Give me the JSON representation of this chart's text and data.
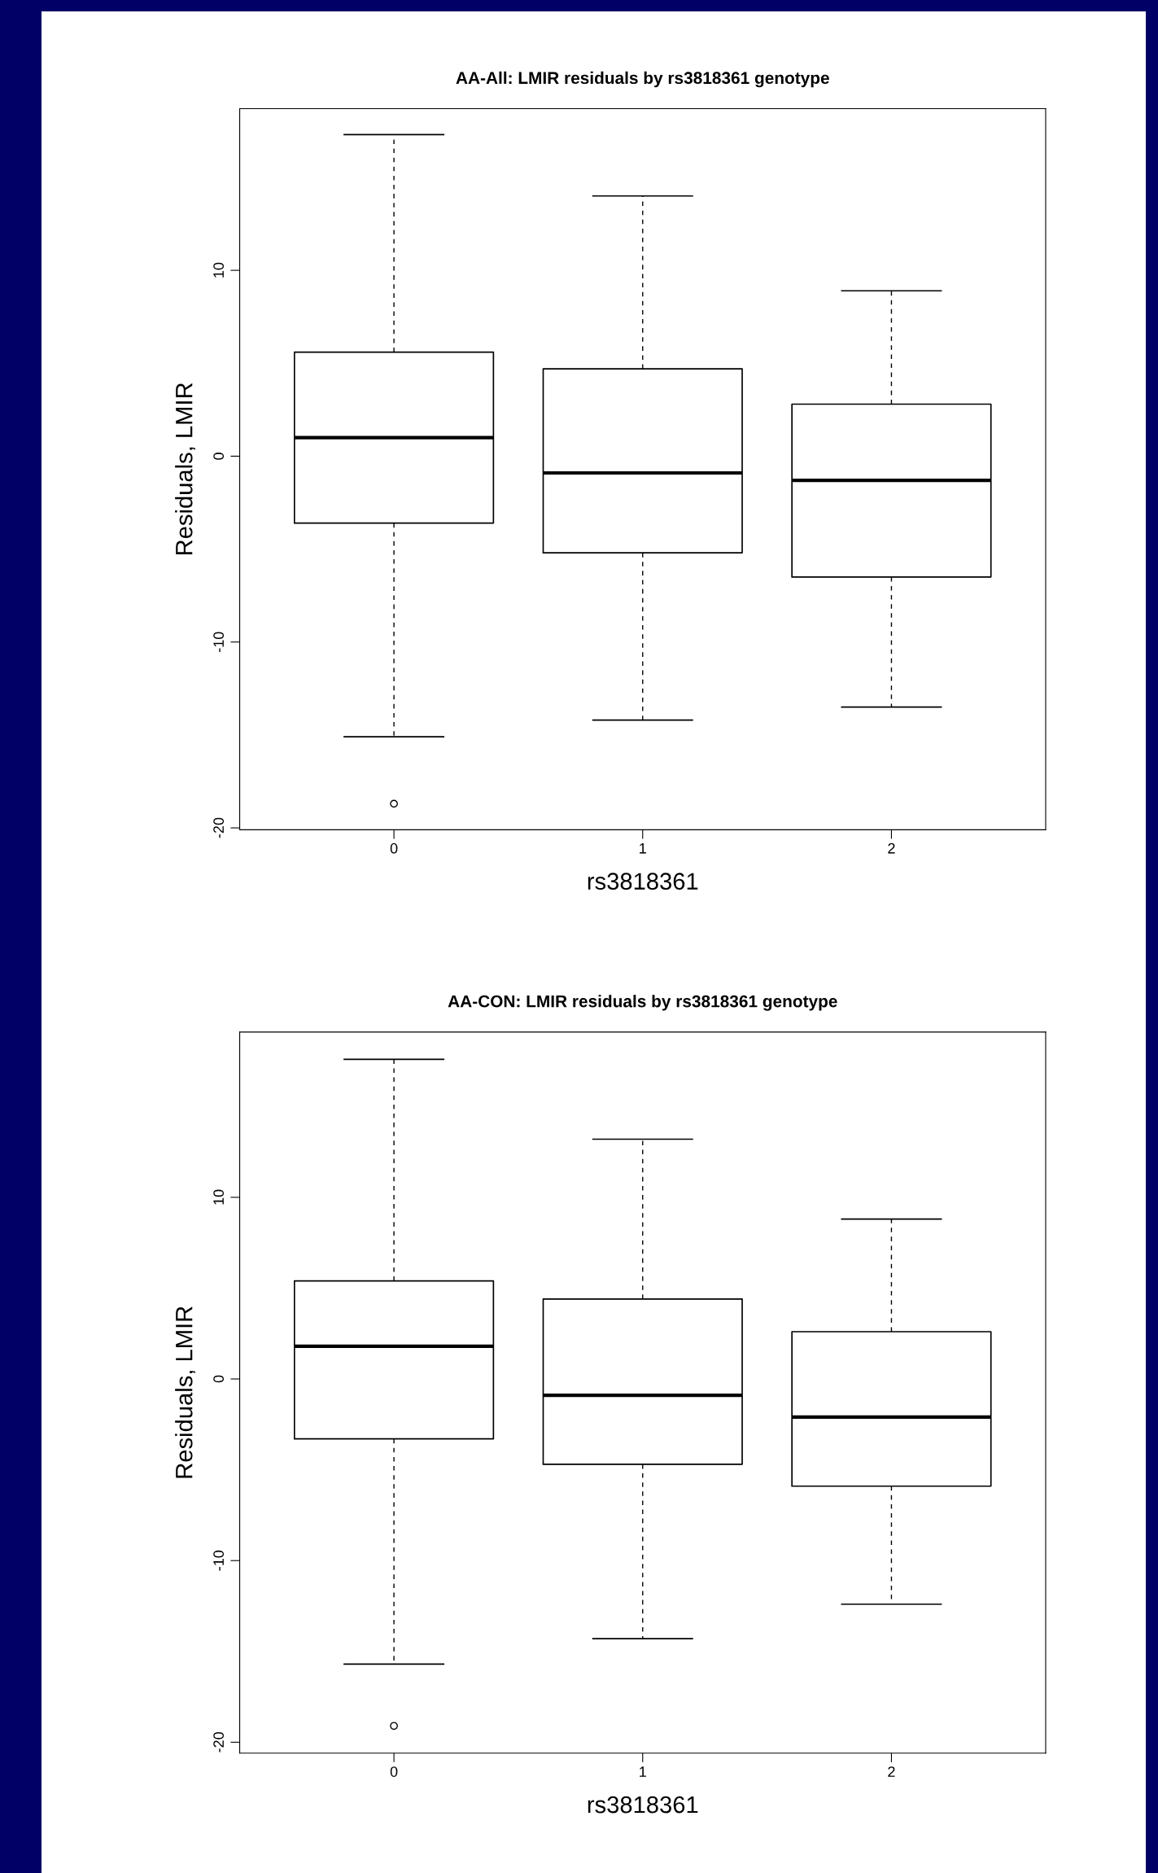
{
  "chart_data": [
    {
      "type": "box",
      "title": "AA-All: LMIR residuals by rs3818361 genotype",
      "xlabel": "rs3818361",
      "ylabel": "Residuals, LMIR",
      "categories": [
        "0",
        "1",
        "2"
      ],
      "boxes": [
        {
          "low": -15.1,
          "q1": -3.6,
          "median": 1.0,
          "q3": 5.6,
          "high": 17.3,
          "outliers": [
            -18.7
          ]
        },
        {
          "low": -14.2,
          "q1": -5.2,
          "median": -0.9,
          "q3": 4.7,
          "high": 14.0
        },
        {
          "low": -13.5,
          "q1": -6.5,
          "median": -1.3,
          "q3": 2.8,
          "high": 8.9
        }
      ],
      "ylim": [
        -20.1,
        18.7
      ],
      "yticks": [
        -20,
        -10,
        0,
        10
      ],
      "grid": false,
      "legend": false
    },
    {
      "type": "box",
      "title": "AA-CON: LMIR residuals by rs3818361 genotype",
      "xlabel": "rs3818361",
      "ylabel": "Residuals, LMIR",
      "categories": [
        "0",
        "1",
        "2"
      ],
      "boxes": [
        {
          "low": -15.7,
          "q1": -3.3,
          "median": 1.8,
          "q3": 5.4,
          "high": 17.6,
          "outliers": [
            -19.1
          ]
        },
        {
          "low": -14.3,
          "q1": -4.7,
          "median": -0.9,
          "q3": 4.4,
          "high": 13.2
        },
        {
          "low": -12.4,
          "q1": -5.9,
          "median": -2.1,
          "q3": 2.6,
          "high": 8.8
        }
      ],
      "ylim": [
        -20.6,
        19.1
      ],
      "yticks": [
        -20,
        -10,
        0,
        10
      ],
      "grid": false,
      "legend": false
    }
  ]
}
